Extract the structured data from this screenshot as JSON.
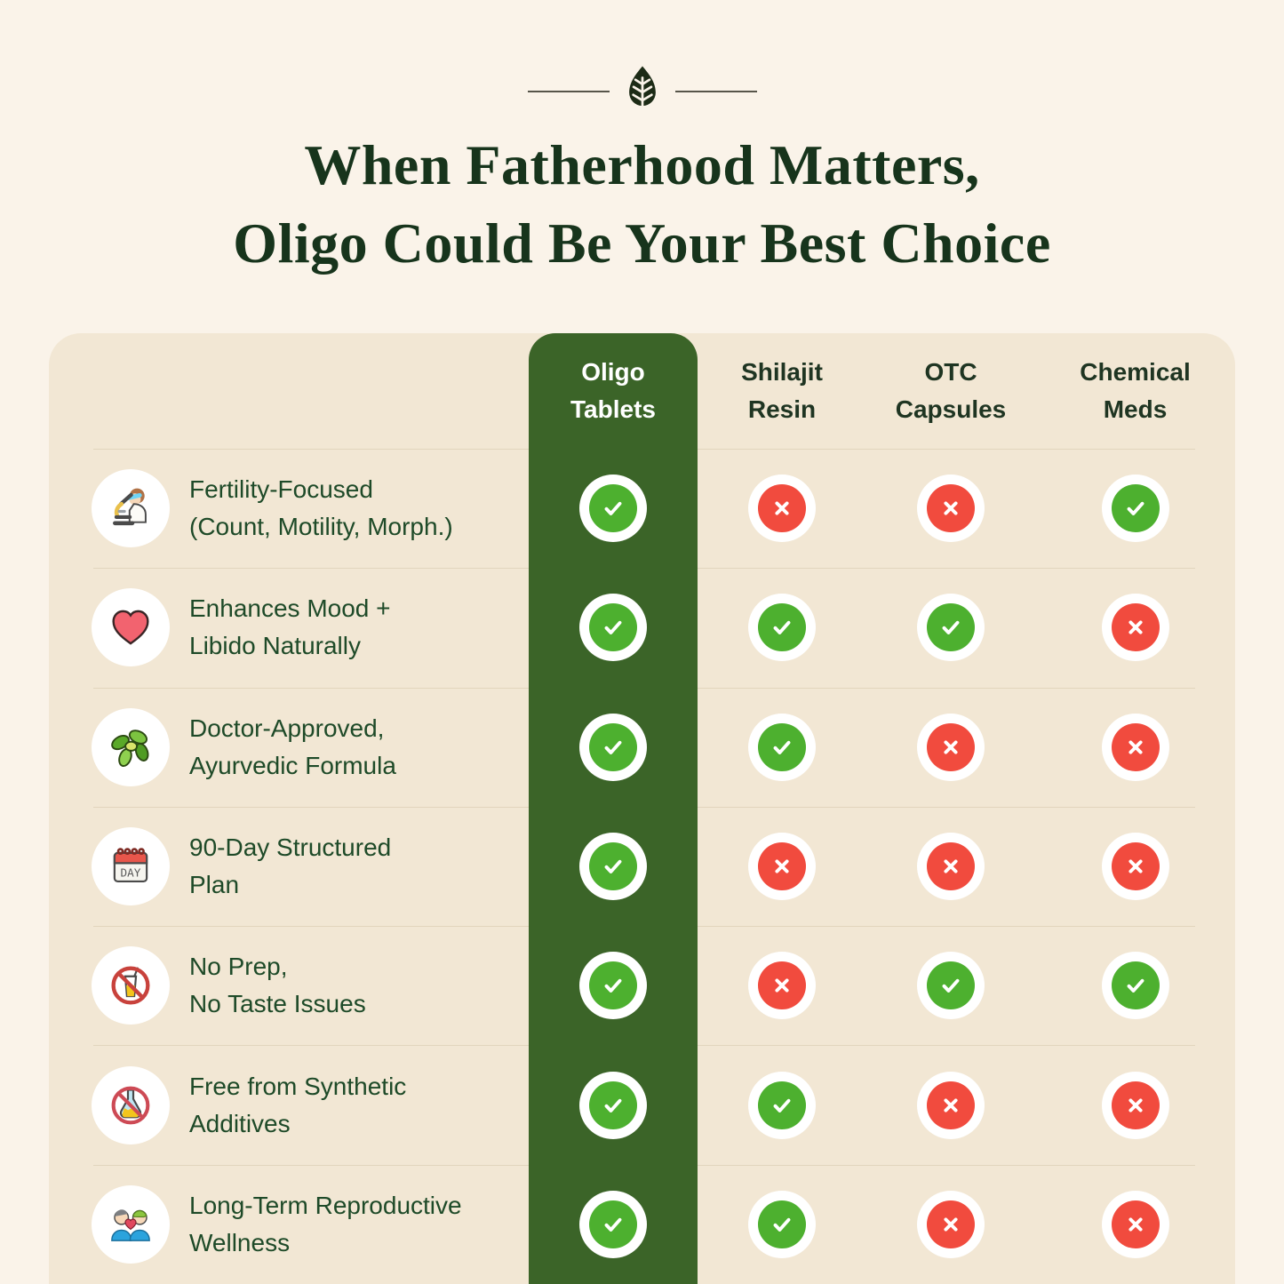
{
  "page": {
    "title_line1": "When Fatherhood Matters,",
    "title_line2": "Oligo Could Be Your Best Choice"
  },
  "ornament": {
    "icon": "leaf-icon"
  },
  "colors": {
    "background": "#faf3e9",
    "table_bg": "#f2e7d4",
    "brand_green": "#3b6428",
    "check_green": "#4db02f",
    "cross_red": "#f14b3e",
    "title_text": "#17341c",
    "header_text": "#1f3522",
    "row_text": "#1e4a28",
    "divider": "#e2d5bd"
  },
  "table": {
    "columns": [
      {
        "label_line1": "Oligo",
        "label_line2": "Tablets",
        "highlight": true
      },
      {
        "label_line1": "Shilajit",
        "label_line2": "Resin",
        "highlight": false
      },
      {
        "label_line1": "OTC",
        "label_line2": "Capsules",
        "highlight": false
      },
      {
        "label_line1": "Chemical",
        "label_line2": "Meds",
        "highlight": false
      }
    ],
    "rows": [
      {
        "icon": "microscope-scientist-icon",
        "label_line1": "Fertility-Focused",
        "label_line2": "(Count, Motility, Morph.)",
        "values": [
          "yes",
          "no",
          "no",
          "yes"
        ]
      },
      {
        "icon": "heart-icon",
        "label_line1": "Enhances Mood +",
        "label_line2": "Libido Naturally",
        "values": [
          "yes",
          "yes",
          "yes",
          "no"
        ]
      },
      {
        "icon": "herb-icon",
        "label_line1": "Doctor-Approved,",
        "label_line2": "Ayurvedic Formula",
        "values": [
          "yes",
          "yes",
          "no",
          "no"
        ]
      },
      {
        "icon": "calendar-day-icon",
        "label_line1": "90-Day Structured",
        "label_line2": "Plan",
        "values": [
          "yes",
          "no",
          "no",
          "no"
        ]
      },
      {
        "icon": "no-drink-icon",
        "label_line1": "No Prep,",
        "label_line2": "No Taste Issues",
        "values": [
          "yes",
          "no",
          "yes",
          "yes"
        ]
      },
      {
        "icon": "no-flask-icon",
        "label_line1": "Free from Synthetic",
        "label_line2": "Additives",
        "values": [
          "yes",
          "yes",
          "no",
          "no"
        ]
      },
      {
        "icon": "couple-icon",
        "label_line1": "Long-Term Reproductive",
        "label_line2": "Wellness",
        "values": [
          "yes",
          "yes",
          "no",
          "no"
        ]
      }
    ]
  },
  "chart_data": {
    "type": "table",
    "title": "When Fatherhood Matters, Oligo Could Be Your Best Choice",
    "columns": [
      "Oligo Tablets",
      "Shilajit Resin",
      "OTC Capsules",
      "Chemical Meds"
    ],
    "row_labels": [
      "Fertility-Focused (Count, Motility, Morph.)",
      "Enhances Mood + Libido Naturally",
      "Doctor-Approved, Ayurvedic Formula",
      "90-Day Structured Plan",
      "No Prep, No Taste Issues",
      "Free from Synthetic Additives",
      "Long-Term Reproductive Wellness"
    ],
    "values": [
      [
        "yes",
        "no",
        "no",
        "yes"
      ],
      [
        "yes",
        "yes",
        "yes",
        "no"
      ],
      [
        "yes",
        "yes",
        "no",
        "no"
      ],
      [
        "yes",
        "no",
        "no",
        "no"
      ],
      [
        "yes",
        "no",
        "yes",
        "yes"
      ],
      [
        "yes",
        "yes",
        "no",
        "no"
      ],
      [
        "yes",
        "yes",
        "no",
        "no"
      ]
    ],
    "legend": {
      "yes": "green check",
      "no": "red cross"
    },
    "highlighted_column": "Oligo Tablets"
  }
}
